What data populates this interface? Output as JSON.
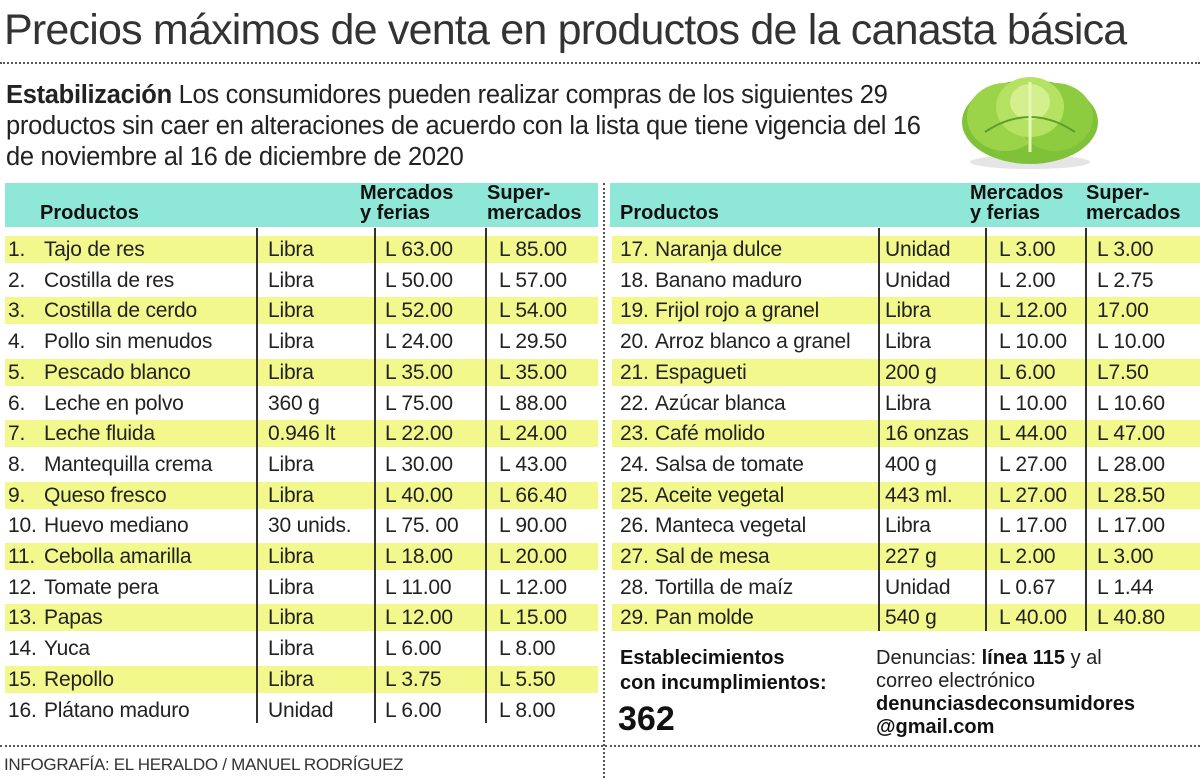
{
  "title": "Precios máximos de venta en productos de la canasta básica",
  "intro": {
    "lead": "Estabilización",
    "text": " Los consumidores pueden realizar compras de los siguientes 29 productos sin caer en alteraciones de acuerdo con la lista que tiene vigencia del 16 de noviembre al 16 de diciembre de 2020"
  },
  "image": "lettuce-icon",
  "colors": {
    "header": "#8fe8d7",
    "highlight": "#f3f88c"
  },
  "table": {
    "headers": {
      "product": "Productos",
      "markets_1": "Mercados",
      "markets_2": "y ferias",
      "super_1": "Super-",
      "super_2": "mercados"
    },
    "rows": [
      {
        "num": "1.",
        "product": "Tajo de res",
        "unit": "Libra",
        "markets": "L 63.00",
        "super": "L 85.00"
      },
      {
        "num": "2.",
        "product": "Costilla de res",
        "unit": "Libra",
        "markets": "L 50.00",
        "super": "L 57.00"
      },
      {
        "num": "3.",
        "product": "Costilla de cerdo",
        "unit": "Libra",
        "markets": "L 52.00",
        "super": "L 54.00"
      },
      {
        "num": "4.",
        "product": "Pollo sin menudos",
        "unit": "Libra",
        "markets": "L 24.00",
        "super": "L 29.50"
      },
      {
        "num": "5.",
        "product": "Pescado blanco",
        "unit": "Libra",
        "markets": "L 35.00",
        "super": "L 35.00"
      },
      {
        "num": "6.",
        "product": "Leche en polvo",
        "unit": "360 g",
        "markets": "L 75.00",
        "super": "L 88.00"
      },
      {
        "num": "7.",
        "product": "Leche fluida",
        "unit": "0.946 lt",
        "markets": "L 22.00",
        "super": "L 24.00"
      },
      {
        "num": "8.",
        "product": "Mantequilla crema",
        "unit": "Libra",
        "markets": "L 30.00",
        "super": "L 43.00"
      },
      {
        "num": "9.",
        "product": "Queso fresco",
        "unit": "Libra",
        "markets": "L 40.00",
        "super": "L 66.40"
      },
      {
        "num": "10.",
        "product": "Huevo mediano",
        "unit": "30 unids.",
        "markets": "L 75. 00",
        "super": "L 90.00"
      },
      {
        "num": "11.",
        "product": "Cebolla amarilla",
        "unit": "Libra",
        "markets": "L 18.00",
        "super": "L 20.00"
      },
      {
        "num": "12.",
        "product": "Tomate pera",
        "unit": "Libra",
        "markets": "L 11.00",
        "super": "L 12.00"
      },
      {
        "num": "13.",
        "product": "Papas",
        "unit": "Libra",
        "markets": "L 12.00",
        "super": "L 15.00"
      },
      {
        "num": "14.",
        "product": "Yuca",
        "unit": "Libra",
        "markets": "L 6.00",
        "super": "L 8.00"
      },
      {
        "num": "15.",
        "product": "Repollo",
        "unit": "Libra",
        "markets": "L 3.75",
        "super": "L 5.50"
      },
      {
        "num": "16.",
        "product": "Plátano maduro",
        "unit": "Unidad",
        "markets": "L 6.00",
        "super": "L 8.00"
      },
      {
        "num": "17.",
        "product": "Naranja dulce",
        "unit": "Unidad",
        "markets": "L 3.00",
        "super": "L 3.00"
      },
      {
        "num": "18.",
        "product": "Banano maduro",
        "unit": "Unidad",
        "markets": "L 2.00",
        "super": "L 2.75"
      },
      {
        "num": "19.",
        "product": "Frijol rojo a granel",
        "unit": "Libra",
        "markets": "L 12.00",
        "super": "17.00"
      },
      {
        "num": "20.",
        "product": "Arroz blanco a granel",
        "unit": "Libra",
        "markets": "L 10.00",
        "super": "L 10.00"
      },
      {
        "num": "21.",
        "product": "Espagueti",
        "unit": "200 g",
        "markets": "L 6.00",
        "super": "L7.50"
      },
      {
        "num": "22.",
        "product": "Azúcar blanca",
        "unit": "Libra",
        "markets": "L 10.00",
        "super": "L 10.60"
      },
      {
        "num": "23.",
        "product": "Café molido",
        "unit": "16 onzas",
        "markets": "L 44.00",
        "super": "L 47.00"
      },
      {
        "num": "24.",
        "product": "Salsa de tomate",
        "unit": "400 g",
        "markets": "L 27.00",
        "super": "L 28.00"
      },
      {
        "num": "25.",
        "product": "Aceite vegetal",
        "unit": "443 ml.",
        "markets": "L 27.00",
        "super": "L 28.50"
      },
      {
        "num": "26.",
        "product": "Manteca vegetal",
        "unit": "Libra",
        "markets": "L 17.00",
        "super": "L 17.00"
      },
      {
        "num": "27.",
        "product": "Sal de mesa",
        "unit": "227 g",
        "markets": "L 2.00",
        "super": "L 3.00"
      },
      {
        "num": "28.",
        "product": "Tortilla de maíz",
        "unit": "Unidad",
        "markets": "L 0.67",
        "super": "L 1.44"
      },
      {
        "num": "29.",
        "product": "Pan molde",
        "unit": "540 g",
        "markets": "L 40.00",
        "super": "L 40.80"
      }
    ]
  },
  "establishments": {
    "label_1": "Establecimientos",
    "label_2": "con incumplimientos:",
    "count": "362"
  },
  "complaints": {
    "prefix": "Denuncias: ",
    "line": "línea 115",
    "mid": " y al",
    "line2": "correo electrónico",
    "email_1": "denunciasdeconsumidores",
    "email_2": "@gmail.com"
  },
  "credit": "INFOGRAFÍA: EL HERALDO / MANUEL RODRÍGUEZ"
}
